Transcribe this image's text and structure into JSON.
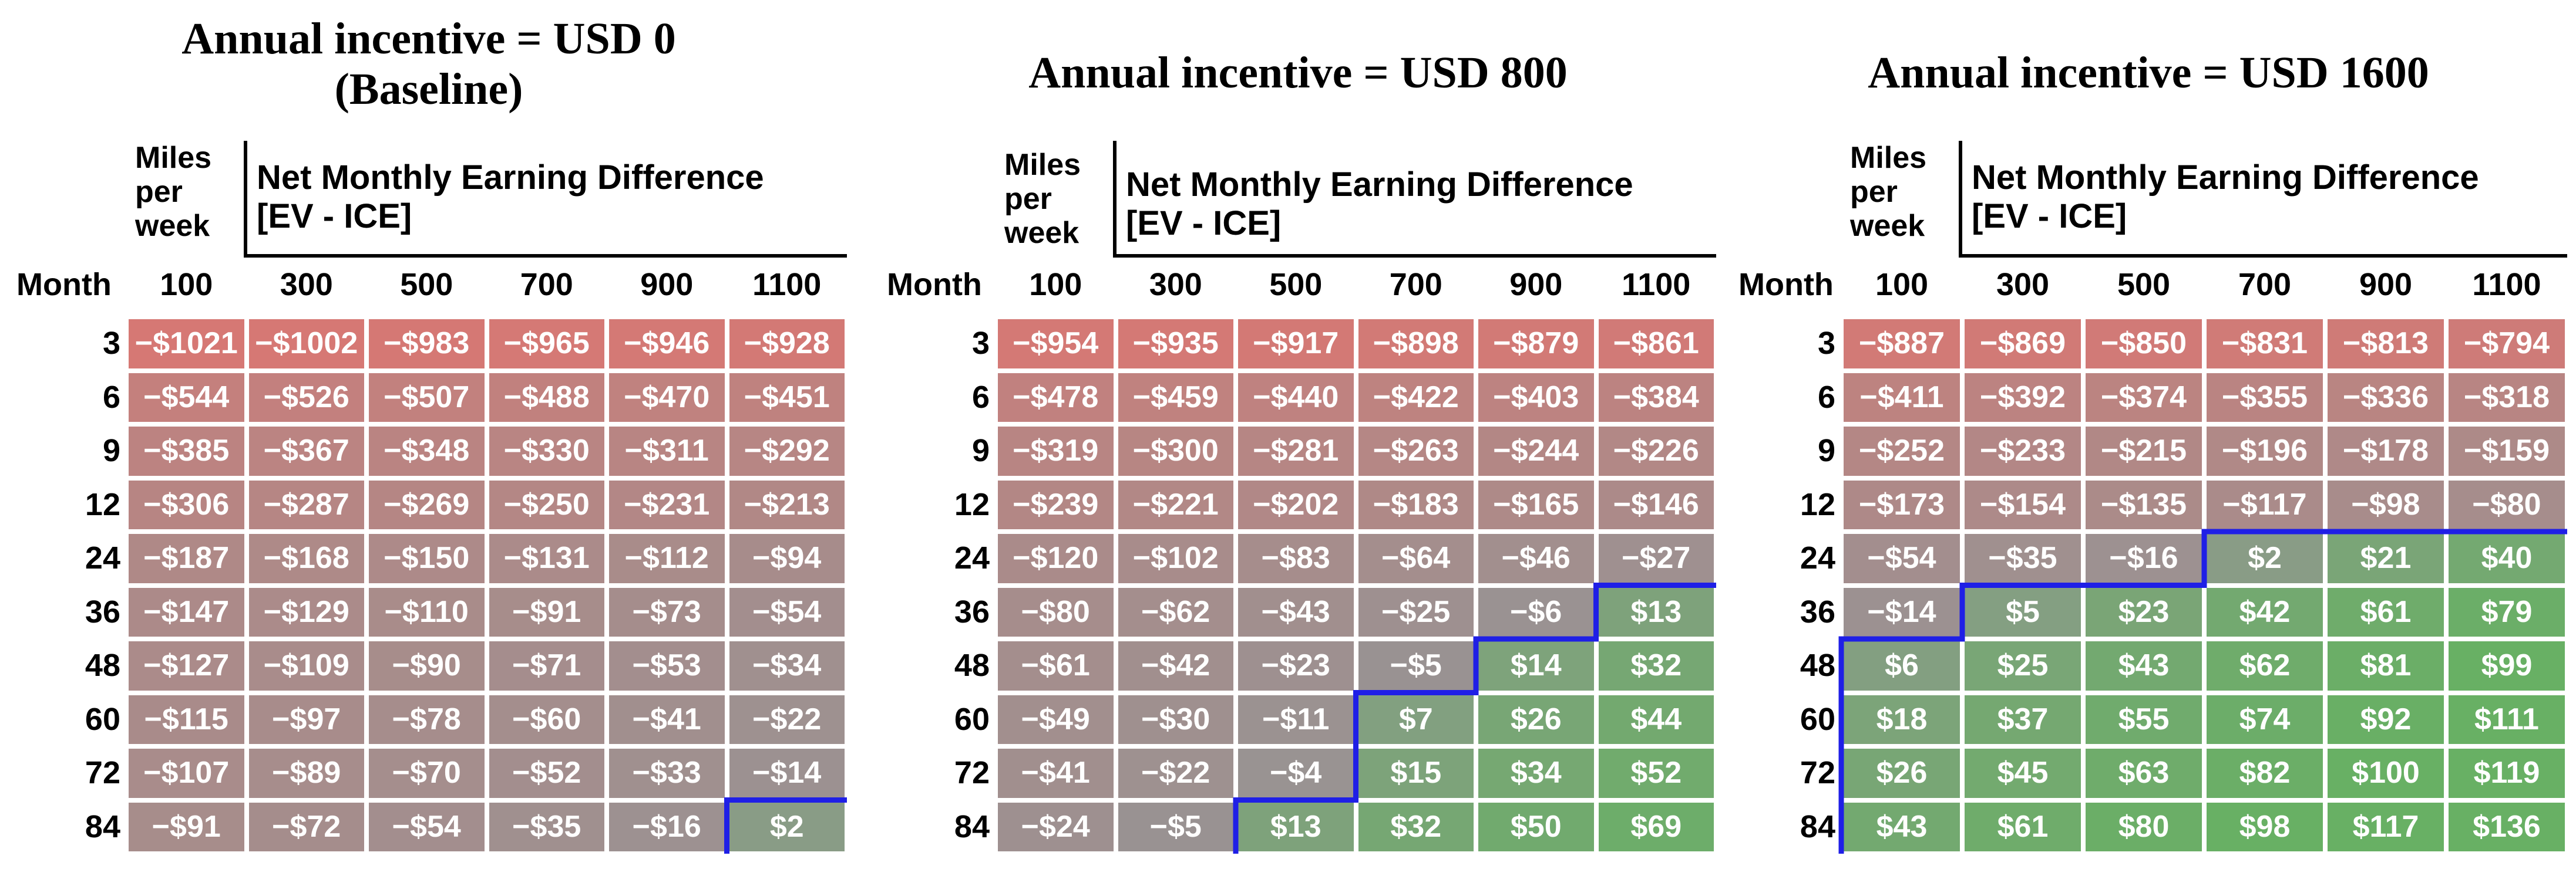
{
  "chart_data": [
    {
      "type": "heatmap",
      "title": "Annual incentive = USD 0",
      "subtitle": "(Baseline)",
      "corner_label": [
        "Miles",
        "per",
        "week"
      ],
      "value_title": [
        "Net Monthly Earning Difference",
        "[EV - ICE]"
      ],
      "row_axis_label": "Month",
      "columns": [
        "100",
        "300",
        "500",
        "700",
        "900",
        "1100"
      ],
      "rows": [
        "3",
        "6",
        "9",
        "12",
        "24",
        "36",
        "48",
        "60",
        "72",
        "84"
      ],
      "cells": [
        [
          "−$1021",
          "−$1002",
          "−$983",
          "−$965",
          "−$946",
          "−$928"
        ],
        [
          "−$544",
          "−$526",
          "−$507",
          "−$488",
          "−$470",
          "−$451"
        ],
        [
          "−$385",
          "−$367",
          "−$348",
          "−$330",
          "−$311",
          "−$292"
        ],
        [
          "−$306",
          "−$287",
          "−$269",
          "−$250",
          "−$231",
          "−$213"
        ],
        [
          "−$187",
          "−$168",
          "−$150",
          "−$131",
          "−$112",
          "−$94"
        ],
        [
          "−$147",
          "−$129",
          "−$110",
          "−$91",
          "−$73",
          "−$54"
        ],
        [
          "−$127",
          "−$109",
          "−$90",
          "−$71",
          "−$53",
          "−$34"
        ],
        [
          "−$115",
          "−$97",
          "−$78",
          "−$60",
          "−$41",
          "−$22"
        ],
        [
          "−$107",
          "−$89",
          "−$70",
          "−$52",
          "−$33",
          "−$14"
        ],
        [
          "−$91",
          "−$72",
          "−$54",
          "−$35",
          "−$16",
          "$2"
        ]
      ],
      "values": [
        [
          -1021,
          -1002,
          -983,
          -965,
          -946,
          -928
        ],
        [
          -544,
          -526,
          -507,
          -488,
          -470,
          -451
        ],
        [
          -385,
          -367,
          -348,
          -330,
          -311,
          -292
        ],
        [
          -306,
          -287,
          -269,
          -250,
          -231,
          -213
        ],
        [
          -187,
          -168,
          -150,
          -131,
          -112,
          -94
        ],
        [
          -147,
          -129,
          -110,
          -91,
          -73,
          -54
        ],
        [
          -127,
          -109,
          -90,
          -71,
          -53,
          -34
        ],
        [
          -115,
          -97,
          -78,
          -60,
          -41,
          -22
        ],
        [
          -107,
          -89,
          -70,
          -52,
          -33,
          -14
        ],
        [
          -91,
          -72,
          -54,
          -35,
          -16,
          2
        ]
      ],
      "boundary_color": "#1f1fe6"
    },
    {
      "type": "heatmap",
      "title": "Annual incentive = USD 800",
      "subtitle": "",
      "corner_label": [
        "Miles",
        "per",
        "week"
      ],
      "value_title": [
        "Net Monthly Earning Difference",
        "[EV - ICE]"
      ],
      "row_axis_label": "Month",
      "columns": [
        "100",
        "300",
        "500",
        "700",
        "900",
        "1100"
      ],
      "rows": [
        "3",
        "6",
        "9",
        "12",
        "24",
        "36",
        "48",
        "60",
        "72",
        "84"
      ],
      "cells": [
        [
          "−$954",
          "−$935",
          "−$917",
          "−$898",
          "−$879",
          "−$861"
        ],
        [
          "−$478",
          "−$459",
          "−$440",
          "−$422",
          "−$403",
          "−$384"
        ],
        [
          "−$319",
          "−$300",
          "−$281",
          "−$263",
          "−$244",
          "−$226"
        ],
        [
          "−$239",
          "−$221",
          "−$202",
          "−$183",
          "−$165",
          "−$146"
        ],
        [
          "−$120",
          "−$102",
          "−$83",
          "−$64",
          "−$46",
          "−$27"
        ],
        [
          "−$80",
          "−$62",
          "−$43",
          "−$25",
          "−$6",
          "$13"
        ],
        [
          "−$61",
          "−$42",
          "−$23",
          "−$5",
          "$14",
          "$32"
        ],
        [
          "−$49",
          "−$30",
          "−$11",
          "$7",
          "$26",
          "$44"
        ],
        [
          "−$41",
          "−$22",
          "−$4",
          "$15",
          "$34",
          "$52"
        ],
        [
          "−$24",
          "−$5",
          "$13",
          "$32",
          "$50",
          "$69"
        ]
      ],
      "values": [
        [
          -954,
          -935,
          -917,
          -898,
          -879,
          -861
        ],
        [
          -478,
          -459,
          -440,
          -422,
          -403,
          -384
        ],
        [
          -319,
          -300,
          -281,
          -263,
          -244,
          -226
        ],
        [
          -239,
          -221,
          -202,
          -183,
          -165,
          -146
        ],
        [
          -120,
          -102,
          -83,
          -64,
          -46,
          -27
        ],
        [
          -80,
          -62,
          -43,
          -25,
          -6,
          13
        ],
        [
          -61,
          -42,
          -23,
          -5,
          14,
          32
        ],
        [
          -49,
          -30,
          -11,
          7,
          26,
          44
        ],
        [
          -41,
          -22,
          -4,
          15,
          34,
          52
        ],
        [
          -24,
          -5,
          13,
          32,
          50,
          69
        ]
      ],
      "boundary_color": "#1f1fe6"
    },
    {
      "type": "heatmap",
      "title": "Annual incentive = USD 1600",
      "subtitle": "",
      "corner_label": [
        "Miles",
        "per",
        "week"
      ],
      "value_title": [
        "Net Monthly Earning Difference",
        "[EV - ICE]"
      ],
      "row_axis_label": "Month",
      "columns": [
        "100",
        "300",
        "500",
        "700",
        "900",
        "1100"
      ],
      "rows": [
        "3",
        "6",
        "9",
        "12",
        "24",
        "36",
        "48",
        "60",
        "72",
        "84"
      ],
      "cells": [
        [
          "−$887",
          "−$869",
          "−$850",
          "−$831",
          "−$813",
          "−$794"
        ],
        [
          "−$411",
          "−$392",
          "−$374",
          "−$355",
          "−$336",
          "−$318"
        ],
        [
          "−$252",
          "−$233",
          "−$215",
          "−$196",
          "−$178",
          "−$159"
        ],
        [
          "−$173",
          "−$154",
          "−$135",
          "−$117",
          "−$98",
          "−$80"
        ],
        [
          "−$54",
          "−$35",
          "−$16",
          "$2",
          "$21",
          "$40"
        ],
        [
          "−$14",
          "$5",
          "$23",
          "$42",
          "$61",
          "$79"
        ],
        [
          "$6",
          "$25",
          "$43",
          "$62",
          "$81",
          "$99"
        ],
        [
          "$18",
          "$37",
          "$55",
          "$74",
          "$92",
          "$111"
        ],
        [
          "$26",
          "$45",
          "$63",
          "$82",
          "$100",
          "$119"
        ],
        [
          "$43",
          "$61",
          "$80",
          "$98",
          "$117",
          "$136"
        ]
      ],
      "values": [
        [
          -887,
          -869,
          -850,
          -831,
          -813,
          -794
        ],
        [
          -411,
          -392,
          -374,
          -355,
          -336,
          -318
        ],
        [
          -252,
          -233,
          -215,
          -196,
          -178,
          -159
        ],
        [
          -173,
          -154,
          -135,
          -117,
          -98,
          -80
        ],
        [
          -54,
          -35,
          -16,
          2,
          21,
          40
        ],
        [
          -14,
          5,
          23,
          42,
          61,
          79
        ],
        [
          6,
          25,
          43,
          62,
          81,
          99
        ],
        [
          18,
          37,
          55,
          74,
          92,
          111
        ],
        [
          26,
          45,
          63,
          82,
          100,
          119
        ],
        [
          43,
          61,
          80,
          98,
          117,
          136
        ]
      ],
      "boundary_color": "#1f1fe6"
    }
  ]
}
